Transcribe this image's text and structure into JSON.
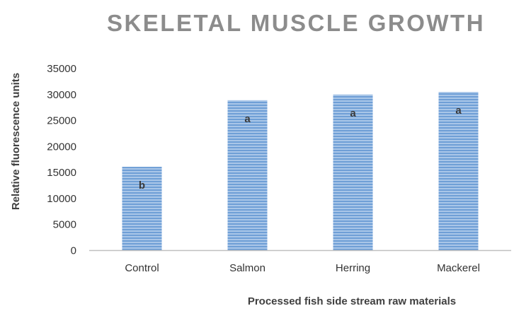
{
  "chart_data": {
    "type": "bar",
    "title": "SKELETAL MUSCLE GROWTH",
    "xlabel": "Processed fish side stream raw materials",
    "ylabel": "Relative fluorescence units",
    "categories": [
      "Control",
      "Salmon",
      "Herring",
      "Mackerel"
    ],
    "values": [
      16100,
      28900,
      30000,
      30500
    ],
    "significance_labels": [
      "b",
      "a",
      "a",
      "a"
    ],
    "ylim": [
      0,
      35000
    ],
    "yticks": [
      0,
      5000,
      10000,
      15000,
      20000,
      25000,
      30000,
      35000
    ],
    "grid": false,
    "legend": "none",
    "colors": {
      "bar_fill": "#a9c6e8",
      "bar_stripe": "#6f9fd6",
      "axis": "#bfbfbf"
    }
  }
}
